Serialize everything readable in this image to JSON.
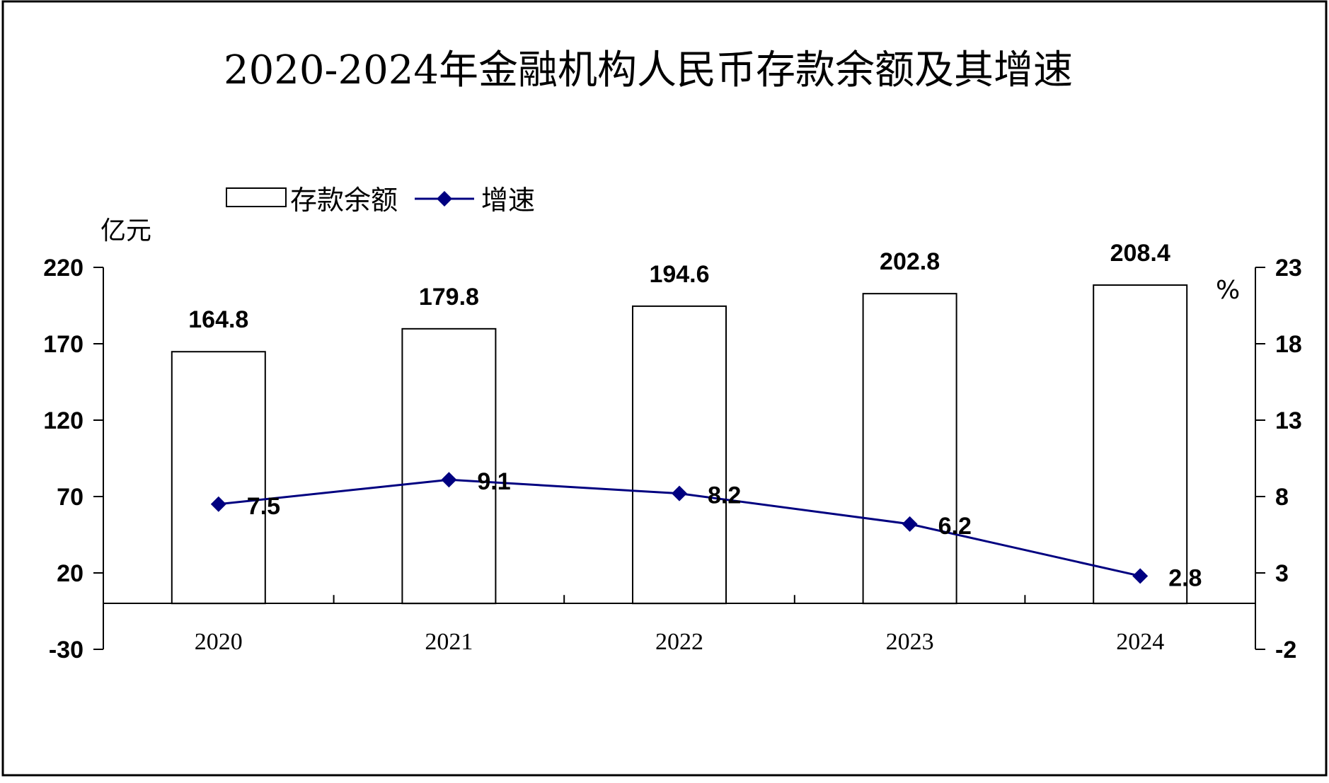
{
  "chart_data": {
    "type": "bar",
    "title": "2020-2024年金融机构人民币存款余额及其增速",
    "categories": [
      "2020",
      "2021",
      "2022",
      "2023",
      "2024"
    ],
    "series": [
      {
        "name": "存款余额",
        "type": "bar",
        "axis": "left",
        "values": [
          164.8,
          179.8,
          194.6,
          202.8,
          208.4
        ],
        "color": "#ffffff"
      },
      {
        "name": "增速",
        "type": "line",
        "axis": "right",
        "marker": "diamond",
        "values": [
          7.5,
          9.1,
          8.2,
          6.2,
          2.8
        ],
        "color": "#000080"
      }
    ],
    "bar_labels": [
      "164.8",
      "179.8",
      "194.6",
      "202.8",
      "208.4"
    ],
    "line_labels": [
      "7.5",
      "9.1",
      "8.2",
      "6.2",
      "2.8"
    ],
    "y_left": {
      "unit": "亿元",
      "ylim": [
        -30,
        220
      ],
      "ticks": [
        "220",
        "170",
        "120",
        "70",
        "20",
        "-30"
      ],
      "tick_values": [
        220,
        170,
        120,
        70,
        20,
        -30
      ]
    },
    "y_right": {
      "unit": "%",
      "ylim": [
        -2,
        23
      ],
      "ticks": [
        "23",
        "18",
        "13",
        "8",
        "3",
        "-2"
      ],
      "tick_values": [
        23,
        18,
        13,
        8,
        3,
        -2
      ]
    },
    "baseline": 0,
    "grid": false,
    "legend": {
      "position": "top-left",
      "items": [
        "存款余额",
        "增速"
      ]
    }
  }
}
